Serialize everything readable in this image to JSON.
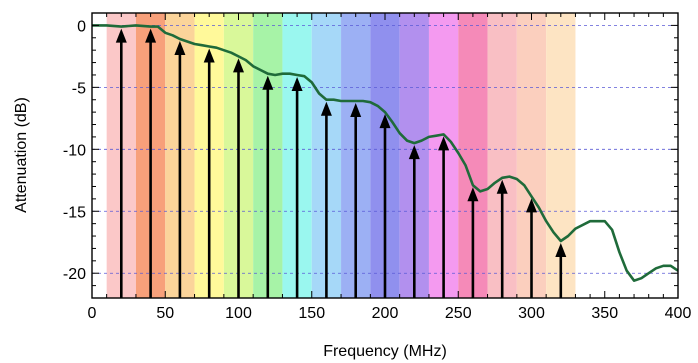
{
  "chart_data": {
    "type": "line",
    "title": "",
    "xlabel": "Frequency (MHz)",
    "ylabel": "Attenuation (dB)",
    "xlim": [
      0,
      400
    ],
    "ylim": [
      -22,
      1
    ],
    "xticks": [
      0,
      50,
      100,
      150,
      200,
      250,
      300,
      350,
      400
    ],
    "xtick_labels": [
      "0",
      "50",
      "100",
      "150",
      "200",
      "250",
      "300",
      "350",
      "400"
    ],
    "yticks": [
      0,
      -5,
      -10,
      -15,
      -20
    ],
    "ytick_labels": [
      "0",
      "-5",
      "-10",
      "-15",
      "-20"
    ],
    "grid": {
      "horizontal_dashed": true,
      "vertical": false
    },
    "legend": "none",
    "colors": {
      "line": "#1f6b3a",
      "arrow": "#000000",
      "grid": "#5a5ad6"
    },
    "bands": [
      {
        "x0": 10,
        "x1": 30,
        "color": "#fbc8c8"
      },
      {
        "x0": 30,
        "x1": 50,
        "color": "#f7a07a"
      },
      {
        "x0": 50,
        "x1": 70,
        "color": "#fbd49a"
      },
      {
        "x0": 70,
        "x1": 90,
        "color": "#fff99a"
      },
      {
        "x0": 90,
        "x1": 110,
        "color": "#d9f89a"
      },
      {
        "x0": 110,
        "x1": 130,
        "color": "#a7f3a7"
      },
      {
        "x0": 130,
        "x1": 150,
        "color": "#9af7ef"
      },
      {
        "x0": 150,
        "x1": 170,
        "color": "#a6d8f8"
      },
      {
        "x0": 170,
        "x1": 190,
        "color": "#9cb0f4"
      },
      {
        "x0": 190,
        "x1": 210,
        "color": "#9090ee"
      },
      {
        "x0": 210,
        "x1": 230,
        "color": "#b290ee"
      },
      {
        "x0": 230,
        "x1": 250,
        "color": "#f49af0"
      },
      {
        "x0": 250,
        "x1": 270,
        "color": "#f58ab8"
      },
      {
        "x0": 270,
        "x1": 290,
        "color": "#f9bfc4"
      },
      {
        "x0": 290,
        "x1": 310,
        "color": "#fbcfbe"
      },
      {
        "x0": 310,
        "x1": 330,
        "color": "#fde4c3"
      }
    ],
    "series": [
      {
        "x": [
          0,
          10,
          20,
          30,
          40,
          45,
          50,
          55,
          60,
          65,
          70,
          75,
          80,
          85,
          90,
          95,
          100,
          105,
          110,
          115,
          120,
          125,
          130,
          135,
          140,
          145,
          150,
          155,
          160,
          165,
          170,
          175,
          180,
          185,
          190,
          195,
          200,
          205,
          210,
          215,
          220,
          225,
          230,
          235,
          240,
          245,
          250,
          255,
          260,
          265,
          270,
          275,
          280,
          285,
          290,
          295,
          300,
          305,
          310,
          315,
          320,
          325,
          330,
          340,
          350,
          355,
          360,
          365,
          370,
          375,
          380,
          385,
          390,
          395,
          400
        ],
        "y": [
          0,
          0,
          -0.1,
          0,
          -0.1,
          -0.1,
          -0.6,
          -0.8,
          -1.1,
          -1.3,
          -1.5,
          -1.6,
          -1.7,
          -1.8,
          -2.0,
          -2.2,
          -2.5,
          -2.8,
          -3.3,
          -3.6,
          -3.9,
          -4.0,
          -3.9,
          -3.9,
          -4.0,
          -4.1,
          -4.6,
          -5.5,
          -6.0,
          -6.0,
          -6.1,
          -6.1,
          -6.1,
          -6.1,
          -6.2,
          -6.5,
          -7.0,
          -7.8,
          -8.7,
          -9.3,
          -9.5,
          -9.3,
          -9.0,
          -8.9,
          -8.8,
          -9.4,
          -10.3,
          -11.3,
          -12.9,
          -13.4,
          -13.2,
          -12.7,
          -12.3,
          -12.2,
          -12.4,
          -12.9,
          -13.8,
          -14.7,
          -15.8,
          -16.7,
          -17.4,
          -17.0,
          -16.4,
          -15.8,
          -15.8,
          -16.5,
          -18.3,
          -19.8,
          -20.6,
          -20.4,
          -20.0,
          -19.6,
          -19.4,
          -19.4,
          -19.8
        ]
      }
    ],
    "arrows": {
      "x": [
        20,
        40,
        60,
        80,
        100,
        120,
        140,
        160,
        180,
        200,
        220,
        240,
        260,
        280,
        300,
        320
      ],
      "base_y": -22
    }
  }
}
